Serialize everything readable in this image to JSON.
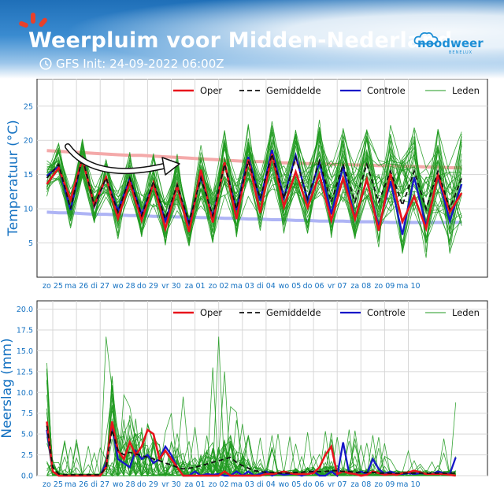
{
  "header": {
    "title": "Weerpluim voor Midden-Nederland",
    "subtitle": "GFS Init: 24-09-2022 06:00Z",
    "logo_text": "noodweer",
    "logo_subtext": "BENELUX",
    "icons": [
      "sunburst-icon",
      "clock-icon",
      "cloud-logo-icon"
    ]
  },
  "colors": {
    "oper": "#e8141c",
    "gemiddelde": "#111111",
    "controle": "#1616c8",
    "leden": "#1f9a1f",
    "climate_max": "#f4a9a9",
    "climate_min": "#aeb4f5",
    "axis": "#1572c2"
  },
  "chart_data": [
    {
      "type": "line",
      "ylabel": "Temperatuur (°C)",
      "ylim": [
        0,
        29
      ],
      "yticks": [
        5,
        10,
        15,
        20,
        25
      ],
      "grid": true,
      "legend_position": "top",
      "legend": [
        "Oper",
        "Gemiddelde",
        "Controle",
        "Leden"
      ],
      "x_day_labels": [
        "zo 25",
        "ma 26",
        "di 27",
        "wo 28",
        "do 29",
        "vr 30",
        "za 01",
        "zo 02",
        "ma 03",
        "di 04",
        "wo 05",
        "do 06",
        "vr 07",
        "za 08",
        "zo 09",
        "ma 10"
      ],
      "x_step_days": 0.5,
      "x_start_day_offset": -0.25,
      "series": [
        {
          "name": "Oper",
          "style": "solid",
          "values": [
            13.6,
            16.0,
            11.3,
            17.3,
            10.5,
            14.6,
            8.6,
            13.9,
            8.3,
            13.8,
            7.1,
            13.4,
            6.6,
            15.7,
            8.0,
            16.8,
            8.5,
            17.2,
            9.4,
            18.0,
            10.3,
            15.4,
            10.2,
            15.0,
            8.3,
            14.5,
            8.5,
            14.3,
            6.8,
            15.2,
            8.1,
            11.8,
            7.1,
            15.0,
            9.5,
            12.3
          ]
        },
        {
          "name": "Gemiddelde",
          "style": "dashed",
          "values": [
            14.5,
            16.5,
            10.0,
            17.5,
            10.5,
            14.5,
            9.5,
            14.5,
            9.0,
            14.0,
            8.5,
            13.5,
            8.0,
            14.5,
            9.0,
            16.5,
            10.0,
            17.0,
            11.5,
            18.0,
            11.5,
            17.5,
            11.5,
            17.0,
            11.0,
            16.5,
            11.0,
            16.5,
            11.0,
            15.5,
            10.5,
            15.5,
            10.0,
            15.5,
            10.0,
            14.5
          ]
        },
        {
          "name": "Controle",
          "style": "solid",
          "values": [
            14.8,
            16.2,
            9.8,
            17.6,
            10.3,
            14.5,
            9.7,
            14.4,
            9.2,
            13.8,
            8.2,
            13.2,
            7.8,
            14.8,
            8.8,
            16.6,
            9.8,
            17.6,
            11.2,
            18.6,
            11.6,
            17.8,
            11.2,
            16.8,
            9.2,
            16.2,
            8.6,
            14.2,
            7.4,
            14.0,
            6.2,
            14.6,
            7.4,
            14.8,
            8.2,
            13.6
          ]
        },
        {
          "name": "Climate max",
          "style": "solid",
          "values": [
            18.5,
            18.4,
            18.3,
            18.2,
            18.1,
            18.0,
            17.9,
            17.8,
            17.8,
            17.7,
            17.6,
            17.5,
            17.4,
            17.3,
            17.2,
            17.1,
            17.0,
            16.9,
            16.9,
            16.8,
            16.7,
            16.7,
            16.6,
            16.6,
            16.5,
            16.5,
            16.4,
            16.4,
            16.3,
            16.3,
            16.2,
            16.2,
            16.1,
            16.1,
            16.0,
            16.0
          ]
        },
        {
          "name": "Climate min",
          "style": "solid",
          "values": [
            9.5,
            9.4,
            9.4,
            9.3,
            9.2,
            9.2,
            9.1,
            9.0,
            9.0,
            8.9,
            8.9,
            8.8,
            8.8,
            8.7,
            8.7,
            8.6,
            8.6,
            8.5,
            8.5,
            8.4,
            8.4,
            8.3,
            8.3,
            8.2,
            8.2,
            8.2,
            8.1,
            8.1,
            8.1,
            8.0,
            8.0,
            8.0,
            8.0,
            8.0,
            8.0,
            8.0
          ]
        }
      ],
      "leden_count": 30,
      "leden_spread": "Ensemble members spread roughly 2 to 6 °C around the mean, widening over time"
    },
    {
      "type": "line",
      "ylabel": "Neerslag (mm)",
      "ylim": [
        0,
        21
      ],
      "yticks": [
        0.0,
        2.5,
        5.0,
        7.5,
        10.0,
        12.5,
        15.0,
        17.5,
        20.0
      ],
      "grid": true,
      "legend_position": "top",
      "legend": [
        "Oper",
        "Gemiddelde",
        "Controle",
        "Leden"
      ],
      "x_day_labels": [
        "zo 25",
        "ma 26",
        "di 27",
        "wo 28",
        "do 29",
        "vr 30",
        "za 01",
        "zo 02",
        "ma 03",
        "di 04",
        "wo 05",
        "do 06",
        "vr 07",
        "za 08",
        "zo 09",
        "ma 10"
      ],
      "x_step_days": 0.25,
      "x_start_day_offset": -0.25,
      "series": [
        {
          "name": "Oper",
          "style": "solid",
          "values": [
            6.5,
            0.5,
            0,
            0,
            0,
            0,
            0,
            0,
            0,
            0,
            1.0,
            6.5,
            3.0,
            2.0,
            4.0,
            2.5,
            3.5,
            5.5,
            5.0,
            2.0,
            3.0,
            2.0,
            1.0,
            0,
            0,
            0,
            0,
            0,
            0,
            0,
            0.5,
            0,
            0,
            0,
            0,
            0,
            0,
            0.2,
            0.2,
            0.3,
            0.5,
            0.3,
            0.2,
            0.2,
            0.2,
            0.3,
            1.0,
            2.5,
            3.5,
            0.2,
            0.5,
            0.3,
            0.2,
            0,
            0.1,
            0.5,
            0.3,
            0.1,
            0.2,
            0.1,
            0.3,
            0.4,
            0.6,
            0.4,
            0.2,
            0.2,
            0.2,
            0.2,
            0.1,
            0
          ]
        },
        {
          "name": "Gemiddelde",
          "style": "dashed",
          "values": [
            6.0,
            1.0,
            0.2,
            0.1,
            0.1,
            0.1,
            0.1,
            0.1,
            0.1,
            0.1,
            1.0,
            5.5,
            3.0,
            2.5,
            2.8,
            2.6,
            2.4,
            2.2,
            2.0,
            1.8,
            1.5,
            1.3,
            1.0,
            0.8,
            0.9,
            1.0,
            1.2,
            1.4,
            1.6,
            1.8,
            2.0,
            2.2,
            1.6,
            1.2,
            0.9,
            0.6,
            0.5,
            0.4,
            0.4,
            0.3,
            0.3,
            0.3,
            0.4,
            0.4,
            0.5,
            0.5,
            0.5,
            0.5,
            0.6,
            0.6,
            0.5,
            0.5,
            0.4,
            0.4,
            0.4,
            0.4,
            0.3,
            0.3,
            0.3,
            0.3,
            0.3,
            0.3,
            0.3,
            0.3,
            0.3,
            0.3,
            0.3,
            0.3,
            0.3,
            0.3
          ]
        },
        {
          "name": "Controle",
          "style": "solid",
          "values": [
            5.5,
            0.5,
            0,
            0,
            0,
            0,
            0,
            0,
            0,
            0,
            1.5,
            6.0,
            2.0,
            1.5,
            1.0,
            3.0,
            2.0,
            2.5,
            1.5,
            2.0,
            3.5,
            2.5,
            1.0,
            0,
            0,
            0.5,
            0,
            0.2,
            0.1,
            0.2,
            0,
            0,
            0.5,
            0,
            0.5,
            0,
            0.2,
            0.5,
            0,
            0.3,
            0.1,
            0.2,
            0.2,
            0,
            0.2,
            0.5,
            0,
            0,
            0.5,
            0,
            4.0,
            0.3,
            0.2,
            0.5,
            0.2,
            2.0,
            0.8,
            0.2,
            0.5,
            0.2,
            0.2,
            0.3,
            0.2,
            0.3,
            0.2,
            0.2,
            0.5,
            0.3,
            0.2,
            2.2
          ]
        }
      ],
      "leden_count": 30,
      "leden_peaks_mm": [
        16.7,
        16.7,
        13.0,
        12.5,
        10.8,
        8.8
      ]
    }
  ]
}
